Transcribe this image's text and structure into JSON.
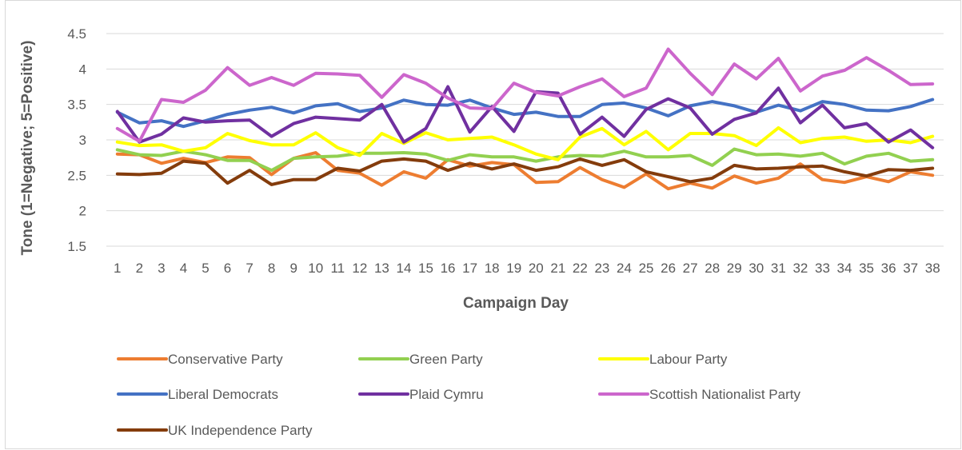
{
  "chart_data": {
    "type": "line",
    "title": "",
    "xlabel": "Campaign Day",
    "ylabel": "Tone (1=Negative; 5=Positive)",
    "ylim": [
      1.5,
      4.5
    ],
    "yticks": [
      "1.5",
      "2",
      "2.5",
      "3",
      "3.5",
      "4",
      "4.5"
    ],
    "ytick_values": [
      1.5,
      2,
      2.5,
      3,
      3.5,
      4,
      4.5
    ],
    "x": [
      "1",
      "2",
      "3",
      "4",
      "5",
      "6",
      "7",
      "8",
      "9",
      "10",
      "11",
      "12",
      "13",
      "14",
      "15",
      "16",
      "17",
      "18",
      "19",
      "20",
      "21",
      "22",
      "23",
      "24",
      "25",
      "26",
      "27",
      "28",
      "29",
      "30",
      "31",
      "32",
      "33",
      "34",
      "35",
      "36",
      "37",
      "38"
    ],
    "grid": true,
    "legend_position": "bottom",
    "series": [
      {
        "name": "Conservative Party",
        "color": "#ED7D31",
        "values": [
          2.8,
          2.79,
          2.67,
          2.74,
          2.68,
          2.76,
          2.75,
          2.51,
          2.74,
          2.82,
          2.57,
          2.53,
          2.36,
          2.55,
          2.46,
          2.72,
          2.63,
          2.68,
          2.65,
          2.4,
          2.41,
          2.61,
          2.44,
          2.33,
          2.52,
          2.31,
          2.39,
          2.32,
          2.49,
          2.39,
          2.46,
          2.66,
          2.44,
          2.4,
          2.48,
          2.41,
          2.55,
          2.5
        ]
      },
      {
        "name": "Green Party",
        "color": "#92D050",
        "values": [
          2.86,
          2.79,
          2.78,
          2.84,
          2.79,
          2.71,
          2.71,
          2.57,
          2.74,
          2.76,
          2.77,
          2.81,
          2.81,
          2.82,
          2.8,
          2.71,
          2.79,
          2.76,
          2.76,
          2.7,
          2.76,
          2.78,
          2.77,
          2.84,
          2.76,
          2.76,
          2.78,
          2.64,
          2.87,
          2.79,
          2.8,
          2.77,
          2.81,
          2.66,
          2.77,
          2.81,
          2.7,
          2.72
        ]
      },
      {
        "name": "Labour Party",
        "color": "#FFFF00",
        "values": [
          2.97,
          2.92,
          2.93,
          2.84,
          2.89,
          3.09,
          2.99,
          2.93,
          2.93,
          3.1,
          2.89,
          2.78,
          3.09,
          2.95,
          3.1,
          3.0,
          3.02,
          3.04,
          2.93,
          2.8,
          2.72,
          3.04,
          3.16,
          2.93,
          3.12,
          2.86,
          3.09,
          3.09,
          3.06,
          2.92,
          3.17,
          2.96,
          3.02,
          3.04,
          2.98,
          3.0,
          2.96,
          3.05
        ]
      },
      {
        "name": "Liberal Democrats",
        "color": "#4472C4",
        "values": [
          3.39,
          3.24,
          3.27,
          3.19,
          3.27,
          3.36,
          3.42,
          3.46,
          3.38,
          3.48,
          3.51,
          3.4,
          3.45,
          3.56,
          3.5,
          3.49,
          3.56,
          3.45,
          3.36,
          3.39,
          3.33,
          3.33,
          3.5,
          3.52,
          3.45,
          3.34,
          3.48,
          3.54,
          3.48,
          3.39,
          3.49,
          3.41,
          3.54,
          3.5,
          3.42,
          3.41,
          3.47,
          3.57
        ]
      },
      {
        "name": "Plaid Cymru",
        "color": "#7030A0",
        "values": [
          3.4,
          2.97,
          3.08,
          3.31,
          3.25,
          3.27,
          3.28,
          3.05,
          3.23,
          3.32,
          3.3,
          3.28,
          3.5,
          2.97,
          3.16,
          3.75,
          3.11,
          3.47,
          3.12,
          3.68,
          3.66,
          3.08,
          3.32,
          3.05,
          3.43,
          3.58,
          3.45,
          3.08,
          3.29,
          3.38,
          3.73,
          3.24,
          3.49,
          3.17,
          3.23,
          2.97,
          3.14,
          2.89
        ]
      },
      {
        "name": "Scottish Nationalist Party",
        "color": "#CC66CC",
        "values": [
          3.16,
          2.98,
          3.57,
          3.53,
          3.7,
          4.02,
          3.77,
          3.88,
          3.77,
          3.94,
          3.93,
          3.91,
          3.6,
          3.92,
          3.8,
          3.59,
          3.45,
          3.44,
          3.8,
          3.67,
          3.62,
          3.75,
          3.86,
          3.61,
          3.73,
          4.28,
          3.94,
          3.64,
          4.07,
          3.86,
          4.15,
          3.69,
          3.9,
          3.98,
          4.16,
          3.98,
          3.78,
          3.79
        ]
      },
      {
        "name": "UK Independence Party",
        "color": "#843C0C",
        "values": [
          2.52,
          2.51,
          2.53,
          2.7,
          2.67,
          2.39,
          2.57,
          2.37,
          2.44,
          2.44,
          2.6,
          2.56,
          2.7,
          2.73,
          2.7,
          2.57,
          2.67,
          2.59,
          2.66,
          2.57,
          2.62,
          2.73,
          2.64,
          2.72,
          2.55,
          2.48,
          2.41,
          2.46,
          2.64,
          2.59,
          2.6,
          2.62,
          2.63,
          2.55,
          2.49,
          2.58,
          2.57,
          2.6
        ]
      }
    ]
  }
}
